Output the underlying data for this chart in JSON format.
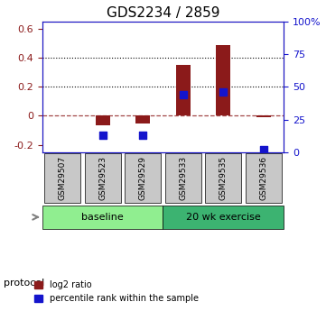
{
  "title": "GDS2234 / 2859",
  "samples": [
    "GSM29507",
    "GSM29523",
    "GSM29529",
    "GSM29533",
    "GSM29535",
    "GSM29536"
  ],
  "log2_ratio": [
    0.0,
    -0.065,
    -0.055,
    0.35,
    0.49,
    -0.01
  ],
  "percentile_rank": [
    null,
    0.13,
    0.13,
    0.44,
    0.46,
    0.02
  ],
  "bar_color": "#8B1A1A",
  "dot_color": "#1414CC",
  "ylim_left": [
    -0.25,
    0.65
  ],
  "ylim_right": [
    0,
    100
  ],
  "yticks_left": [
    -0.2,
    0.0,
    0.2,
    0.4,
    0.6
  ],
  "yticks_right": [
    0,
    25,
    50,
    75,
    100
  ],
  "hlines_dotted": [
    0.2,
    0.4
  ],
  "hline_dashed": 0.0,
  "protocol_groups": [
    {
      "label": "baseline",
      "start": 0,
      "end": 3,
      "color": "#90EE90"
    },
    {
      "label": "20 wk exercise",
      "start": 3,
      "end": 6,
      "color": "#3CB371"
    }
  ],
  "legend_labels": [
    "log2 ratio",
    "percentile rank within the sample"
  ],
  "protocol_label": "protocol",
  "xlabel_color": "#8B1A1A",
  "right_axis_color": "#1414CC",
  "background_plot": "#FFFFFF",
  "background_xticklabel": "#C8C8C8",
  "bar_width": 0.35
}
